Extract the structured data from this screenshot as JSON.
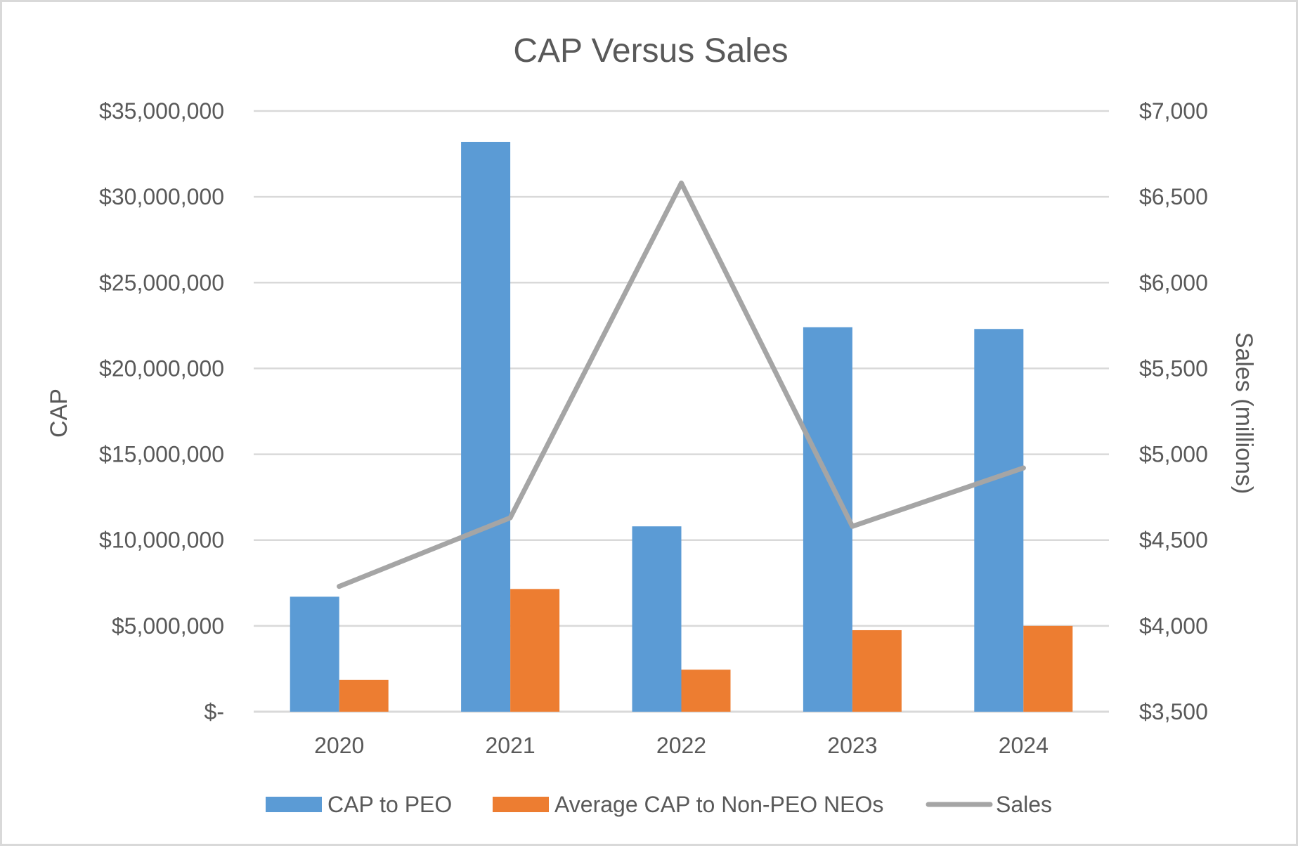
{
  "chart_data": {
    "type": "bar",
    "title": "CAP Versus Sales",
    "categories": [
      "2020",
      "2021",
      "2022",
      "2023",
      "2024"
    ],
    "ylabel": "CAP",
    "y2label": "Sales (millions)",
    "ylim": [
      0,
      35000000
    ],
    "y2lim": [
      3500,
      7000
    ],
    "y_ticks": [
      {
        "value": 0,
        "label": "$-"
      },
      {
        "value": 5000000,
        "label": "$5,000,000"
      },
      {
        "value": 10000000,
        "label": "$10,000,000"
      },
      {
        "value": 15000000,
        "label": "$15,000,000"
      },
      {
        "value": 20000000,
        "label": "$20,000,000"
      },
      {
        "value": 25000000,
        "label": "$25,000,000"
      },
      {
        "value": 30000000,
        "label": "$30,000,000"
      },
      {
        "value": 35000000,
        "label": "$35,000,000"
      }
    ],
    "y2_ticks": [
      {
        "value": 3500,
        "label": "$3,500"
      },
      {
        "value": 4000,
        "label": "$4,000"
      },
      {
        "value": 4500,
        "label": "$4,500"
      },
      {
        "value": 5000,
        "label": "$5,000"
      },
      {
        "value": 5500,
        "label": "$5,500"
      },
      {
        "value": 6000,
        "label": "$6,000"
      },
      {
        "value": 6500,
        "label": "$6,500"
      },
      {
        "value": 7000,
        "label": "$7,000"
      }
    ],
    "grid": true,
    "legend_position": "bottom",
    "series": [
      {
        "name": "CAP to PEO",
        "kind": "bar",
        "axis": "left",
        "color": "#5b9bd5",
        "values": [
          6700000,
          33200000,
          10800000,
          22400000,
          22300000
        ]
      },
      {
        "name": "Average CAP to Non-PEO NEOs",
        "kind": "bar",
        "axis": "left",
        "color": "#ed7d31",
        "values": [
          1850000,
          7150000,
          2450000,
          4750000,
          5000000
        ]
      },
      {
        "name": "Sales",
        "kind": "line",
        "axis": "right",
        "color": "#a5a5a5",
        "values": [
          4230,
          4630,
          6580,
          4580,
          4920
        ]
      }
    ]
  }
}
